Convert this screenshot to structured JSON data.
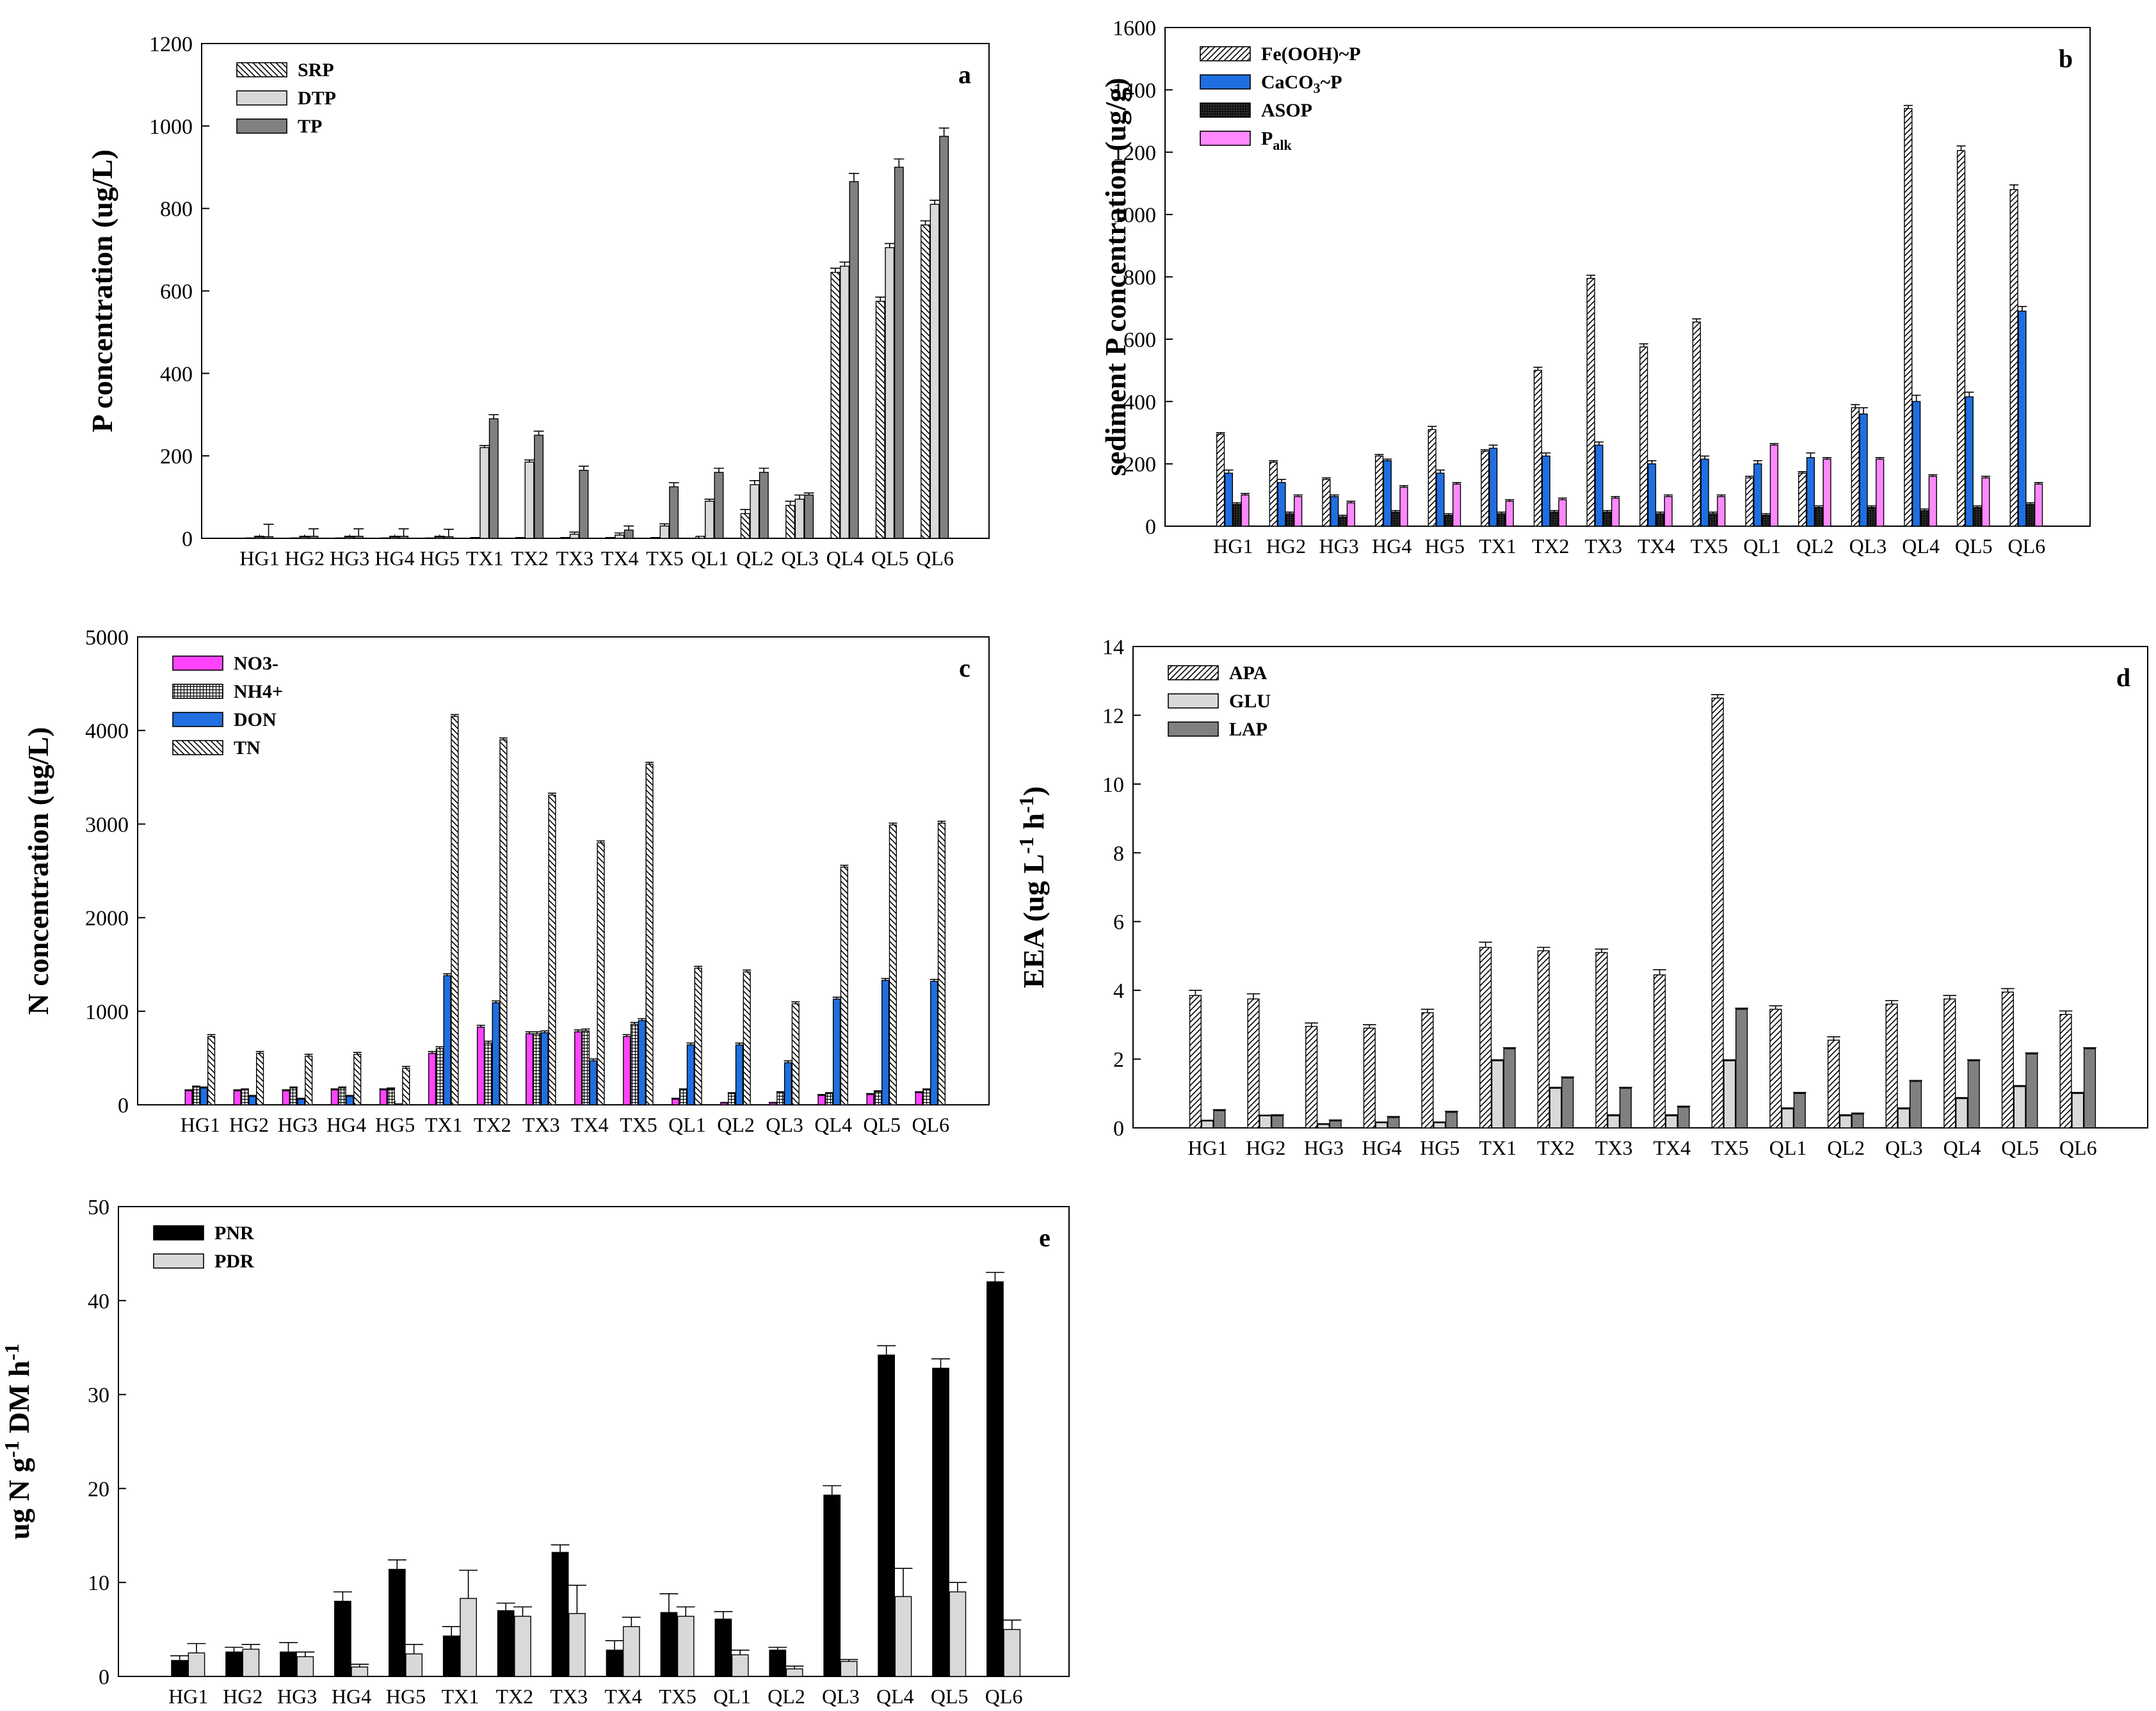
{
  "patterns": {
    "diag": {
      "type": "hatch",
      "dir": "ne",
      "color": "#000000"
    },
    "diagb": {
      "type": "hatch",
      "dir": "nw",
      "color": "#000000"
    },
    "dense": {
      "type": "dense",
      "color": "#000000"
    },
    "grid": {
      "type": "grid",
      "color": "#000000"
    }
  },
  "chart_data": [
    {
      "id": "a",
      "type": "bar",
      "panel_label": "a",
      "ylabel": "P concentration (ug/L)",
      "ylim": [
        0,
        1200
      ],
      "yticks": [
        0,
        200,
        400,
        600,
        800,
        1000,
        1200
      ],
      "legend_position": "top-left",
      "categories": [
        "HG1",
        "HG2",
        "HG3",
        "HG4",
        "HG5",
        "TX1",
        "TX2",
        "TX3",
        "TX4",
        "TX5",
        "QL1",
        "QL2",
        "QL3",
        "QL4",
        "QL5",
        "QL6"
      ],
      "series": [
        {
          "name": "SRP",
          "fill": "diagb",
          "values": [
            1,
            1,
            1,
            1,
            1,
            2,
            2,
            2,
            2,
            2,
            5,
            60,
            80,
            645,
            575,
            760
          ],
          "errors": [
            0,
            0,
            0,
            0,
            0,
            0,
            0,
            0,
            0,
            0,
            0,
            10,
            10,
            10,
            10,
            10
          ]
        },
        {
          "name": "DTP",
          "fill": "#d9d9d9",
          "values": [
            3,
            3,
            3,
            3,
            3,
            220,
            185,
            10,
            8,
            30,
            90,
            130,
            95,
            660,
            705,
            810
          ],
          "errors": [
            2,
            2,
            2,
            2,
            2,
            5,
            5,
            5,
            5,
            5,
            5,
            10,
            10,
            10,
            10,
            10
          ]
        },
        {
          "name": "TP",
          "fill": "#808080",
          "values": [
            4,
            5,
            5,
            5,
            4,
            290,
            250,
            165,
            20,
            125,
            160,
            160,
            105,
            865,
            900,
            975
          ],
          "errors": [
            30,
            18,
            18,
            18,
            18,
            10,
            10,
            10,
            10,
            10,
            10,
            10,
            5,
            20,
            20,
            20
          ]
        }
      ]
    },
    {
      "id": "b",
      "type": "bar",
      "panel_label": "b",
      "ylabel": "sediment P concentration (ug/g)",
      "ylim": [
        0,
        1600
      ],
      "yticks": [
        0,
        200,
        400,
        600,
        800,
        1000,
        1200,
        1400,
        1600
      ],
      "legend_position": "top-left",
      "categories": [
        "HG1",
        "HG2",
        "HG3",
        "HG4",
        "HG5",
        "TX1",
        "TX2",
        "TX3",
        "TX4",
        "TX5",
        "QL1",
        "QL2",
        "QL3",
        "QL4",
        "QL5",
        "QL6"
      ],
      "series": [
        {
          "name": "Fe(OOH)~P",
          "fill": "diag",
          "values": [
            295,
            205,
            150,
            225,
            310,
            240,
            500,
            795,
            575,
            655,
            155,
            170,
            380,
            1340,
            1205,
            1080
          ],
          "errors": [
            5,
            5,
            5,
            5,
            10,
            5,
            10,
            10,
            10,
            10,
            5,
            5,
            10,
            10,
            15,
            15
          ]
        },
        {
          "name": "CaCO3~P",
          "fill": "#1f6fe0",
          "values": [
            170,
            140,
            95,
            210,
            170,
            250,
            225,
            260,
            200,
            215,
            200,
            220,
            360,
            400,
            415,
            690
          ],
          "errors": [
            10,
            10,
            5,
            5,
            10,
            10,
            10,
            10,
            10,
            10,
            10,
            15,
            20,
            20,
            15,
            15
          ]
        },
        {
          "name": "ASOP",
          "fill": "grid",
          "values": [
            70,
            40,
            30,
            45,
            35,
            40,
            45,
            45,
            40,
            40,
            35,
            60,
            60,
            50,
            60,
            70
          ],
          "errors": [
            5,
            5,
            5,
            5,
            5,
            5,
            5,
            5,
            5,
            5,
            5,
            5,
            5,
            5,
            5,
            5
          ]
        },
        {
          "name": "Palk",
          "fill": "#ff88ff",
          "values": [
            100,
            95,
            75,
            125,
            135,
            80,
            85,
            90,
            95,
            95,
            260,
            215,
            215,
            160,
            155,
            135
          ],
          "errors": [
            5,
            5,
            5,
            5,
            5,
            5,
            5,
            5,
            5,
            5,
            5,
            5,
            5,
            5,
            5,
            5
          ]
        }
      ]
    },
    {
      "id": "c",
      "type": "bar",
      "panel_label": "c",
      "ylabel": "N concentration (ug/L)",
      "ylim": [
        0,
        5000
      ],
      "yticks": [
        0,
        1000,
        2000,
        3000,
        4000,
        5000
      ],
      "legend_position": "top-left",
      "categories": [
        "HG1",
        "HG2",
        "HG3",
        "HG4",
        "HG5",
        "TX1",
        "TX2",
        "TX3",
        "TX4",
        "TX5",
        "QL1",
        "QL2",
        "QL3",
        "QL4",
        "QL5",
        "QL6"
      ],
      "series": [
        {
          "name": "NO3-",
          "fill": "#ff44ff",
          "values": [
            150,
            150,
            150,
            160,
            160,
            550,
            830,
            760,
            780,
            730,
            60,
            20,
            20,
            100,
            110,
            130
          ],
          "errors": [
            10,
            10,
            10,
            10,
            10,
            20,
            20,
            20,
            20,
            20,
            10,
            5,
            5,
            10,
            10,
            10
          ]
        },
        {
          "name": "NH4+",
          "fill": "dense",
          "values": [
            190,
            160,
            180,
            180,
            170,
            600,
            660,
            760,
            790,
            860,
            160,
            120,
            130,
            120,
            140,
            160
          ],
          "errors": [
            10,
            10,
            10,
            10,
            10,
            20,
            20,
            20,
            20,
            20,
            10,
            10,
            10,
            10,
            10,
            10
          ]
        },
        {
          "name": "DON",
          "fill": "#1f6fe0",
          "values": [
            180,
            90,
            60,
            90,
            5,
            1380,
            1090,
            770,
            470,
            900,
            640,
            640,
            450,
            1130,
            1330,
            1320
          ],
          "errors": [
            10,
            10,
            10,
            10,
            5,
            20,
            20,
            20,
            20,
            20,
            20,
            20,
            20,
            20,
            20,
            20
          ]
        },
        {
          "name": "TN",
          "fill": "diagb",
          "values": [
            730,
            550,
            520,
            540,
            390,
            4150,
            3900,
            3310,
            2800,
            3640,
            1460,
            1420,
            1080,
            2540,
            2990,
            3010
          ],
          "errors": [
            20,
            20,
            20,
            20,
            20,
            20,
            20,
            20,
            20,
            20,
            20,
            20,
            20,
            20,
            20,
            20
          ]
        }
      ]
    },
    {
      "id": "d",
      "type": "bar",
      "panel_label": "d",
      "ylabel": "EEA (ug L",
      "ylabel_sup1": "-1",
      "ylabel_mid": " h",
      "ylabel_sup2": "-1",
      "ylabel_end": ")",
      "ylim": [
        0,
        14
      ],
      "yticks": [
        0,
        2,
        4,
        6,
        8,
        10,
        12,
        14
      ],
      "legend_position": "top-left",
      "categories": [
        "HG1",
        "HG2",
        "HG3",
        "HG4",
        "HG5",
        "TX1",
        "TX2",
        "TX3",
        "TX4",
        "TX5",
        "QL1",
        "QL2",
        "QL3",
        "QL4",
        "QL5",
        "QL6"
      ],
      "series": [
        {
          "name": "APA",
          "fill": "diag",
          "values": [
            3.85,
            3.75,
            2.95,
            2.9,
            3.35,
            5.25,
            5.15,
            5.1,
            4.45,
            12.5,
            3.45,
            2.55,
            3.6,
            3.75,
            3.95,
            3.3
          ],
          "errors": [
            0.15,
            0.15,
            0.1,
            0.1,
            0.1,
            0.15,
            0.1,
            0.1,
            0.15,
            0.1,
            0.1,
            0.1,
            0.1,
            0.1,
            0.1,
            0.1
          ]
        },
        {
          "name": "GLU",
          "fill": "#d9d9d9",
          "values": [
            0.2,
            0.35,
            0.1,
            0.15,
            0.15,
            1.95,
            1.15,
            0.35,
            0.35,
            1.95,
            0.55,
            0.35,
            0.55,
            0.85,
            1.2,
            1.0
          ],
          "errors": [
            0.02,
            0.02,
            0.02,
            0.02,
            0.02,
            0.03,
            0.03,
            0.03,
            0.03,
            0.03,
            0.03,
            0.03,
            0.03,
            0.03,
            0.03,
            0.03
          ]
        },
        {
          "name": "LAP",
          "fill": "#808080",
          "values": [
            0.5,
            0.35,
            0.2,
            0.3,
            0.45,
            2.3,
            1.45,
            1.15,
            0.6,
            3.45,
            1.0,
            0.4,
            1.35,
            1.95,
            2.15,
            2.3
          ],
          "errors": [
            0.03,
            0.03,
            0.03,
            0.03,
            0.03,
            0.03,
            0.03,
            0.03,
            0.03,
            0.03,
            0.03,
            0.03,
            0.03,
            0.03,
            0.03,
            0.03
          ]
        }
      ]
    },
    {
      "id": "e",
      "type": "bar",
      "panel_label": "e",
      "ylabel": "ug N g",
      "ylabel_sup1": "-1",
      "ylabel_mid": " DM h",
      "ylabel_sup2": "-1",
      "ylabel_end": "",
      "ylim": [
        0,
        50
      ],
      "yticks": [
        0,
        10,
        20,
        30,
        40,
        50
      ],
      "legend_position": "top-left",
      "categories": [
        "HG1",
        "HG2",
        "HG3",
        "HG4",
        "HG5",
        "TX1",
        "TX2",
        "TX3",
        "TX4",
        "TX5",
        "QL1",
        "QL2",
        "QL3",
        "QL4",
        "QL5",
        "QL6"
      ],
      "series": [
        {
          "name": "PNR",
          "fill": "#000000",
          "values": [
            1.7,
            2.6,
            2.6,
            8.0,
            11.4,
            4.3,
            7.0,
            13.2,
            2.8,
            6.8,
            6.1,
            2.8,
            19.3,
            34.2,
            32.8,
            42.0
          ],
          "errors": [
            0.5,
            0.5,
            1.0,
            1.0,
            1.0,
            1.0,
            0.8,
            0.8,
            1.0,
            2.0,
            0.8,
            0.3,
            1.0,
            1.0,
            1.0,
            1.0
          ]
        },
        {
          "name": "PDR",
          "fill": "#d9d9d9",
          "values": [
            2.5,
            2.9,
            2.1,
            1.0,
            2.4,
            8.3,
            6.4,
            6.7,
            5.3,
            6.4,
            2.3,
            0.8,
            1.6,
            8.5,
            9.0,
            5.0
          ],
          "errors": [
            1.0,
            0.5,
            0.5,
            0.3,
            1.0,
            3.0,
            1.0,
            3.0,
            1.0,
            1.0,
            0.5,
            0.3,
            0.2,
            3.0,
            1.0,
            1.0
          ]
        }
      ]
    }
  ]
}
